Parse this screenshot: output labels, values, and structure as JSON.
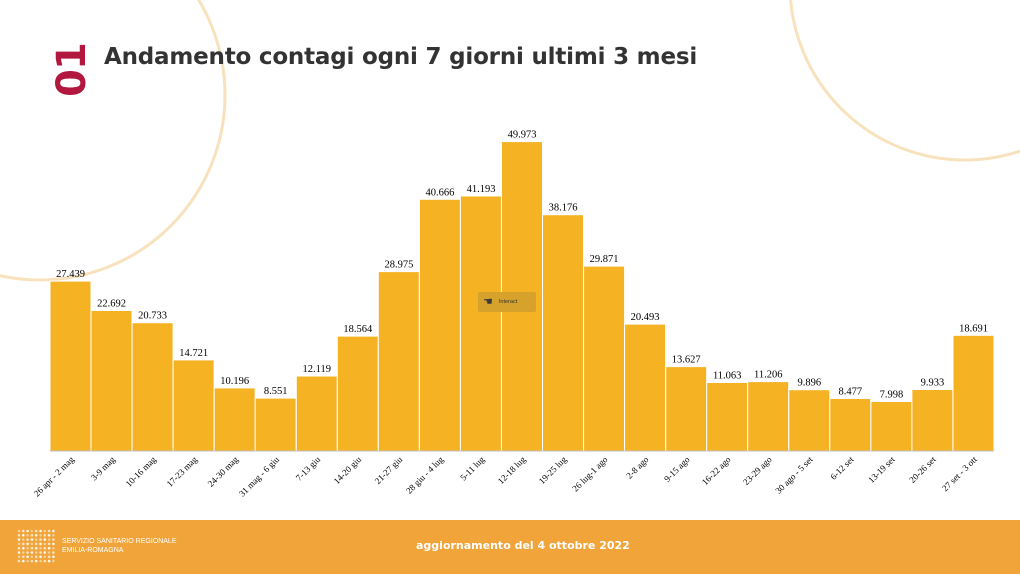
{
  "slide": {
    "number": "01",
    "title": "Andamento contagi ogni 7 giorni ultimi 3 mesi"
  },
  "colors": {
    "bar": "#f5b324",
    "footer": "#f0a43a",
    "title_number": "#b2173f",
    "decoration": "#f8e2bd"
  },
  "interact_button": {
    "label": "Interact",
    "icon": "hand-pointer-icon"
  },
  "footer": {
    "org_line1": "SERVIZIO SANITARIO REGIONALE",
    "org_line2": "EMILIA-ROMAGNA",
    "update": "aggiornamento del 4 ottobre 2022",
    "logo_icon": "dot-grid-logo-icon"
  },
  "chart_data": {
    "type": "bar",
    "title": "Andamento contagi ogni 7 giorni ultimi 3 mesi",
    "xlabel": "",
    "ylabel": "",
    "ylim": [
      0,
      52500
    ],
    "grid": false,
    "legend": "none",
    "categories": [
      "26 apr - 2 mag",
      "3-9 mag",
      "10-16 mag",
      "17-23 mag",
      "24-30 mag",
      "31 mag - 6 giu",
      "7-13 giu",
      "14-20 giu",
      "21-27 giu",
      "28 giu - 4 lug",
      "5-11 lug",
      "12-18 lug",
      "19-25 lug",
      "26 lug-1 ago",
      "2-8 ago",
      "9-15 ago",
      "16-22 ago",
      "23-29 ago",
      "30 ago - 5 set",
      "6-12 set",
      "13-19 set",
      "20-26 set",
      "27 set - 3 ott"
    ],
    "values": [
      27439,
      22692,
      20733,
      14721,
      10196,
      8551,
      12119,
      18564,
      28975,
      40666,
      41193,
      49973,
      38176,
      29871,
      20493,
      13627,
      11063,
      11206,
      9896,
      8477,
      7998,
      9933,
      18691
    ],
    "labels": [
      "27.439",
      "22.692",
      "20.733",
      "14.721",
      "10.196",
      "8.551",
      "12.119",
      "18.564",
      "28.975",
      "40.666",
      "41.193",
      "49.973",
      "38.176",
      "29.871",
      "20.493",
      "13.627",
      "11.063",
      "11.206",
      "9.896",
      "8.477",
      "7.998",
      "9.933",
      "18.691"
    ]
  }
}
